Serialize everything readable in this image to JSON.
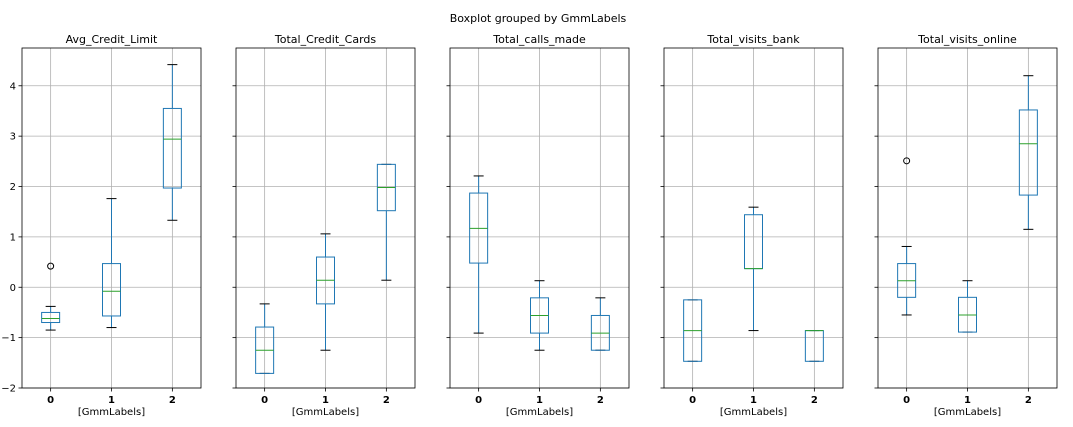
{
  "suptitle": "Boxplot grouped by GmmLabels",
  "chart_data": {
    "type": "boxplot",
    "ylim": [
      -2,
      4.75
    ],
    "yticks": [
      -2,
      -1,
      0,
      1,
      2,
      3,
      4
    ],
    "ytick_labels": [
      "−2",
      "−1",
      "0",
      "1",
      "2",
      "3",
      "4"
    ],
    "categories": [
      "0",
      "1",
      "2"
    ],
    "grid": true,
    "panels": [
      {
        "title": "Avg_Credit_Limit",
        "xlabel": "[GmmLabels]",
        "boxes": [
          {
            "category": "0",
            "whislo": -0.85,
            "q1": -0.7,
            "median": -0.62,
            "q3": -0.5,
            "whishi": -0.38,
            "fliers": [
              0.42
            ]
          },
          {
            "category": "1",
            "whislo": -0.8,
            "q1": -0.57,
            "median": -0.08,
            "q3": 0.47,
            "whishi": 1.76,
            "fliers": []
          },
          {
            "category": "2",
            "whislo": 1.33,
            "q1": 1.97,
            "median": 2.94,
            "q3": 3.55,
            "whishi": 4.42,
            "fliers": []
          }
        ]
      },
      {
        "title": "Total_Credit_Cards",
        "xlabel": "[GmmLabels]",
        "boxes": [
          {
            "category": "0",
            "whislo": -1.71,
            "q1": -1.71,
            "median": -1.25,
            "q3": -0.79,
            "whishi": -0.33,
            "fliers": []
          },
          {
            "category": "1",
            "whislo": -1.25,
            "q1": -0.33,
            "median": 0.14,
            "q3": 0.6,
            "whishi": 1.06,
            "fliers": []
          },
          {
            "category": "2",
            "whislo": 0.14,
            "q1": 1.52,
            "median": 1.98,
            "q3": 2.44,
            "whishi": 2.44,
            "fliers": []
          }
        ]
      },
      {
        "title": "Total_calls_made",
        "xlabel": "[GmmLabels]",
        "boxes": [
          {
            "category": "0",
            "whislo": -0.91,
            "q1": 0.48,
            "median": 1.17,
            "q3": 1.87,
            "whishi": 2.21,
            "fliers": []
          },
          {
            "category": "1",
            "whislo": -1.25,
            "q1": -0.91,
            "median": -0.56,
            "q3": -0.21,
            "whishi": 0.13,
            "fliers": []
          },
          {
            "category": "2",
            "whislo": -1.25,
            "q1": -1.25,
            "median": -0.91,
            "q3": -0.56,
            "whishi": -0.21,
            "fliers": []
          }
        ]
      },
      {
        "title": "Total_visits_bank",
        "xlabel": "[GmmLabels]",
        "boxes": [
          {
            "category": "0",
            "whislo": -1.47,
            "q1": -1.47,
            "median": -0.86,
            "q3": -0.25,
            "whishi": -0.25,
            "fliers": []
          },
          {
            "category": "1",
            "whislo": -0.86,
            "q1": 0.37,
            "median": 0.37,
            "q3": 1.44,
            "whishi": 1.59,
            "fliers": []
          },
          {
            "category": "2",
            "whislo": -1.47,
            "q1": -1.47,
            "median": -0.86,
            "q3": -0.86,
            "whishi": -0.86,
            "fliers": []
          }
        ]
      },
      {
        "title": "Total_visits_online",
        "xlabel": "[GmmLabels]",
        "boxes": [
          {
            "category": "0",
            "whislo": -0.55,
            "q1": -0.2,
            "median": 0.13,
            "q3": 0.47,
            "whishi": 0.81,
            "fliers": [
              2.51
            ]
          },
          {
            "category": "1",
            "whislo": -0.89,
            "q1": -0.89,
            "median": -0.55,
            "q3": -0.2,
            "whishi": 0.13,
            "fliers": []
          },
          {
            "category": "2",
            "whislo": 1.15,
            "q1": 1.83,
            "median": 2.85,
            "q3": 3.52,
            "whishi": 4.2,
            "fliers": []
          }
        ]
      }
    ]
  }
}
